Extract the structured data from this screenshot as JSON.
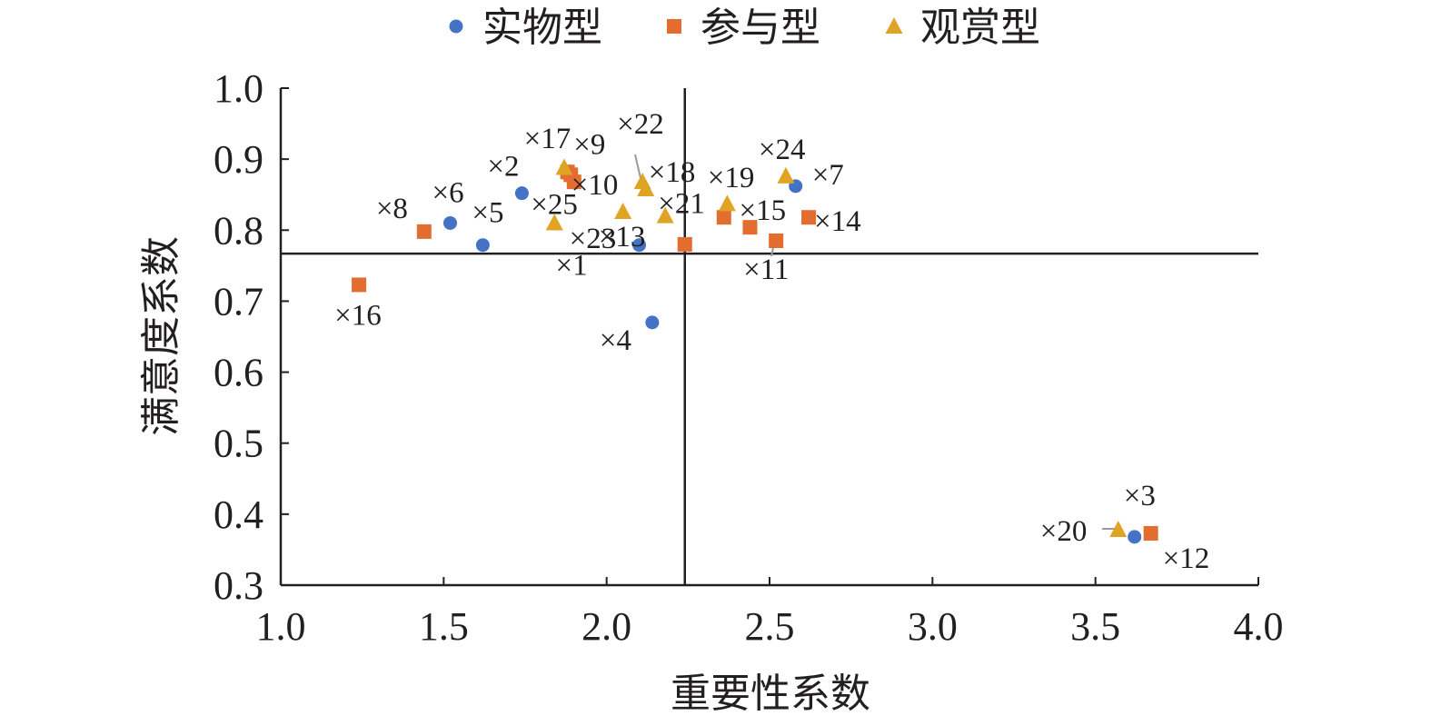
{
  "chart_data": {
    "type": "scatter",
    "xlabel": "重要性系数",
    "ylabel": "满意度系数",
    "xlim": [
      1.0,
      4.0
    ],
    "ylim": [
      0.3,
      1.0
    ],
    "xticks": [
      "1.0",
      "1.5",
      "2.0",
      "2.5",
      "3.0",
      "3.5",
      "4.0"
    ],
    "yticks": [
      "0.3",
      "0.4",
      "0.5",
      "0.6",
      "0.7",
      "0.8",
      "0.9",
      "1.0"
    ],
    "reference_lines": {
      "x": 2.24,
      "y": 0.767
    },
    "legend_position": "top-center",
    "series": [
      {
        "name": "实物型",
        "marker": "circle",
        "color": "#4472c4",
        "points": [
          {
            "label": "×1",
            "x": 2.1,
            "y": 0.779
          },
          {
            "label": "×2",
            "x": 1.74,
            "y": 0.852
          },
          {
            "label": "×3",
            "x": 3.62,
            "y": 0.368
          },
          {
            "label": "×4",
            "x": 2.14,
            "y": 0.67
          },
          {
            "label": "×5",
            "x": 1.62,
            "y": 0.779
          },
          {
            "label": "×6",
            "x": 1.52,
            "y": 0.81
          },
          {
            "label": "×7",
            "x": 2.58,
            "y": 0.862
          }
        ]
      },
      {
        "name": "参与型",
        "marker": "square",
        "color": "#e36c2f",
        "points": [
          {
            "label": "×8",
            "x": 1.44,
            "y": 0.798
          },
          {
            "label": "×9",
            "x": 1.89,
            "y": 0.878
          },
          {
            "label": "×10",
            "x": 1.9,
            "y": 0.868
          },
          {
            "label": "×11",
            "x": 2.52,
            "y": 0.785
          },
          {
            "label": "×12",
            "x": 3.67,
            "y": 0.373
          },
          {
            "label": "×13",
            "x": 2.24,
            "y": 0.78
          },
          {
            "label": "×14",
            "x": 2.62,
            "y": 0.818
          },
          {
            "label": "×15",
            "x": 2.44,
            "y": 0.804
          },
          {
            "label": "×16",
            "x": 1.24,
            "y": 0.723
          },
          {
            "label": "×17",
            "x": 1.88,
            "y": 0.882
          },
          {
            "label": "×19",
            "x": 2.36,
            "y": 0.818
          }
        ]
      },
      {
        "name": "观赏型",
        "marker": "triangle",
        "color": "#e0a424",
        "points": [
          {
            "label": "×18",
            "x": 2.12,
            "y": 0.858
          },
          {
            "label": "×20",
            "x": 3.57,
            "y": 0.378
          },
          {
            "label": "×21",
            "x": 2.18,
            "y": 0.82
          },
          {
            "label": "×22",
            "x": 2.11,
            "y": 0.868
          },
          {
            "label": "×23",
            "x": 2.05,
            "y": 0.826
          },
          {
            "label": "×24",
            "x": 2.55,
            "y": 0.876
          },
          {
            "label": "×25",
            "x": 1.84,
            "y": 0.81
          },
          {
            "label": "",
            "x": 1.87,
            "y": 0.888
          },
          {
            "label": "",
            "x": 2.37,
            "y": 0.837
          }
        ]
      }
    ]
  }
}
